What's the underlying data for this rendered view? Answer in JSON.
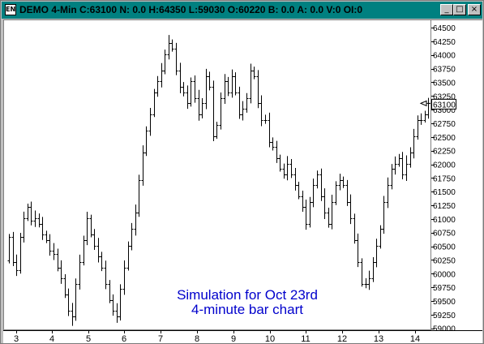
{
  "window": {
    "icon_label": "EN",
    "title": "DEMO 4-Min C:63100 N: 0.0 H:64350 L:59030 O:60220 B: 0.0 A: 0.0 V:0 OI:0",
    "minimize_glyph": "_",
    "maximize_glyph": "□",
    "close_glyph": "×"
  },
  "annotation": {
    "line1": "Simulation for Oct 23rd",
    "line2": "4-minute bar chart"
  },
  "colors": {
    "titlebar": "#008080",
    "bars": "#000000",
    "annotation": "#0000cc",
    "background": "#ffffff"
  },
  "chart_data": {
    "type": "bar",
    "subtype": "ohlc",
    "series": [
      {
        "close": [
          60650,
          60200,
          60050,
          60650,
          61000,
          61200,
          60950,
          61000,
          60900,
          60700,
          60600,
          60400,
          60350,
          60100,
          59900,
          59600,
          59300,
          59200,
          59800,
          60200,
          60600,
          61000,
          60700,
          60500,
          60300,
          60100,
          59800,
          59500,
          59300,
          59200,
          59700,
          60100,
          60500,
          60800,
          61100,
          61700,
          62200,
          62600,
          62900,
          63300,
          63500,
          63700,
          64000,
          64200,
          64100,
          63700,
          63400,
          63300,
          63100,
          63500,
          63200,
          62900,
          63100,
          63600,
          63400,
          62500,
          62700,
          63200,
          63500,
          63300,
          63600,
          63300,
          62900,
          63000,
          63200,
          63700,
          63600,
          63100,
          62800,
          62800,
          62400,
          62300,
          62100,
          61900,
          61800,
          62000,
          61800,
          61600,
          61400,
          61200,
          60900,
          61300,
          61600,
          61800,
          61400,
          61100,
          60900,
          61300,
          61600,
          61700,
          61600,
          61300,
          61000,
          60600,
          60200,
          59800,
          59800,
          59900,
          60200,
          60500,
          60800,
          61300,
          61600,
          61900,
          62000,
          62100,
          61800,
          62000,
          62200,
          62500,
          62800,
          62800,
          62900,
          63100
        ]
      }
    ],
    "high": 64350,
    "low": 59030,
    "x_tick_labels": [
      "3",
      "4",
      "5",
      "6",
      "7",
      "8",
      "9",
      "10",
      "11",
      "12",
      "13",
      "14"
    ],
    "y_tick_labels": [
      "59000",
      "59250",
      "59500",
      "59750",
      "60000",
      "60250",
      "60500",
      "60750",
      "61000",
      "61250",
      "61500",
      "61750",
      "62000",
      "62250",
      "62500",
      "62750",
      "63000",
      "63250",
      "63500",
      "63750",
      "64000",
      "64250",
      "64500"
    ],
    "last_price_label": "63100",
    "ylim": [
      58980,
      64560
    ],
    "grid": false,
    "legend": "none"
  }
}
